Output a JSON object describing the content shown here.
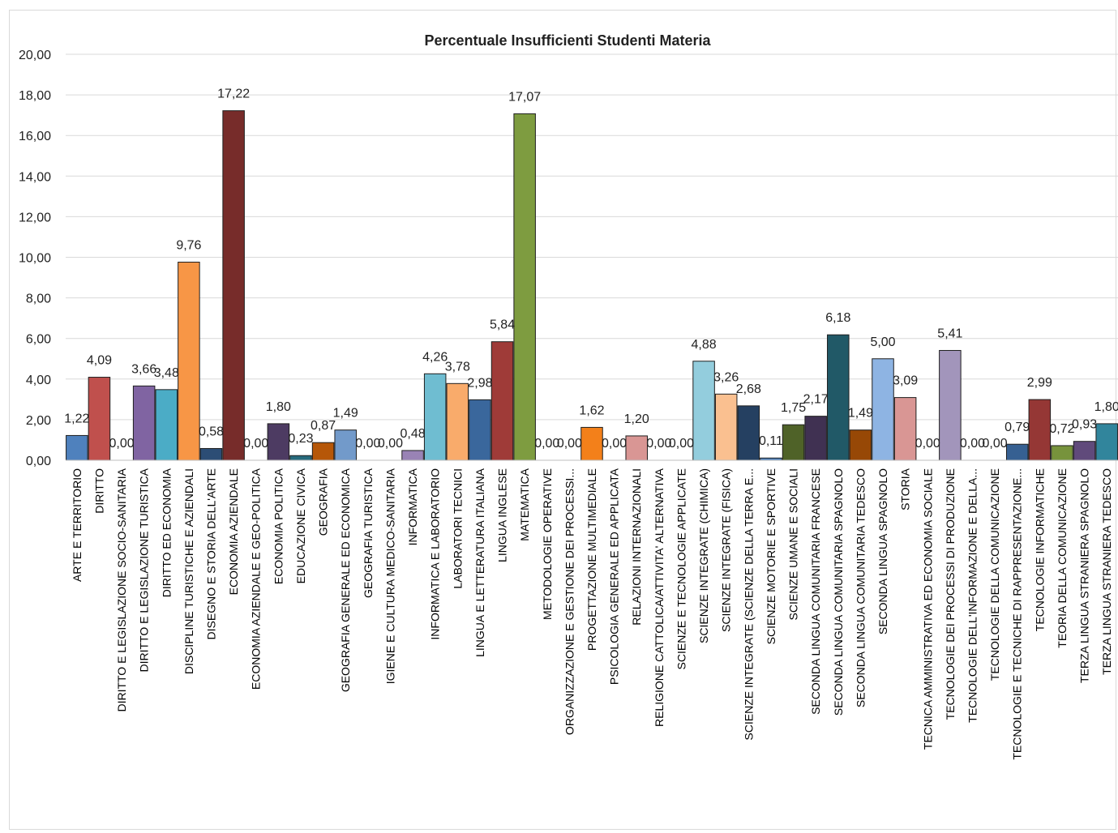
{
  "chart_data": {
    "type": "bar",
    "title": "Percentuale Insufficienti Studenti Materia",
    "xlabel": "",
    "ylabel": "",
    "ylim": [
      0,
      20
    ],
    "y_ticks": [
      "0,00",
      "2,00",
      "4,00",
      "6,00",
      "8,00",
      "10,00",
      "12,00",
      "14,00",
      "16,00",
      "18,00",
      "20,00"
    ],
    "grid": true,
    "legend": "none",
    "categories": [
      "ARTE E TERRITORIO",
      "DIRITTO",
      "DIRITTO E LEGISLAZIONE SOCIO-SANITARIA",
      "DIRITTO E LEGISLAZIONE TURISTICA",
      "DIRITTO ED ECONOMIA",
      "DISCIPLINE TURISTICHE E AZIENDALI",
      "DISEGNO E STORIA DELL'ARTE",
      "ECONOMIA AZIENDALE",
      "ECONOMIA AZIENDALE E GEO-POLITICA",
      "ECONOMIA POLITICA",
      "EDUCAZIONE CIVICA",
      "GEOGRAFIA",
      "GEOGRAFIA GENERALE ED ECONOMICA",
      "GEOGRAFIA TURISTICA",
      "IGIENE E CULTURA MEDICO-SANITARIA",
      "INFORMATICA",
      "INFORMATICA E LABORATORIO",
      "LABORATORI TECNICI",
      "LINGUA E LETTERATURA ITALIANA",
      "LINGUA INGLESE",
      "MATEMATICA",
      "METODOLOGIE OPERATIVE",
      "ORGANIZZAZIONE E GESTIONE DEI PROCESSI...",
      "PROGETTAZIONE MULTIMEDIALE",
      "PSICOLOGIA GENERALE ED APPLICATA",
      "RELAZIONI INTERNAZIONALI",
      "RELIGIONE CATTOLICA/ATTIVITA' ALTERNATIVA",
      "SCIENZE E TECNOLOGIE APPLICATE",
      "SCIENZE INTEGRATE (CHIMICA)",
      "SCIENZE INTEGRATE (FISICA)",
      "SCIENZE INTEGRATE (SCIENZE DELLA TERRA E...",
      "SCIENZE MOTORIE E SPORTIVE",
      "SCIENZE UMANE E SOCIALI",
      "SECONDA LINGUA COMUNITARIA FRANCESE",
      "SECONDA LINGUA COMUNITARIA SPAGNOLO",
      "SECONDA LINGUA COMUNITARIA TEDESCO",
      "SECONDA LINGUA SPAGNOLO",
      "STORIA",
      "TECNICA AMMINISTRATIVA ED ECONOMIA SOCIALE",
      "TECNOLOGIE DEI PROCESSI DI PRODUZIONE",
      "TECNOLOGIE DELL'INFORMAZIONE E DELLA...",
      "TECNOLOGIE DELLA COMUNICAZIONE",
      "TECNOLOGIE E TECNICHE DI RAPPRESENTAZIONE...",
      "TECNOLOGIE INFORMATICHE",
      "TEORIA DELLA COMUNICAZIONE",
      "TERZA LINGUA STRANIERA SPAGNOLO",
      "TERZA LINGUA STRANIERA TEDESCO"
    ],
    "values": [
      1.22,
      4.09,
      0.0,
      3.66,
      3.48,
      9.76,
      0.58,
      17.22,
      0.0,
      1.8,
      0.23,
      0.87,
      1.49,
      0.0,
      0.0,
      0.48,
      4.26,
      3.78,
      2.98,
      5.84,
      17.07,
      0.0,
      0.0,
      1.62,
      0.0,
      1.2,
      0.0,
      0.0,
      4.88,
      3.26,
      2.68,
      0.11,
      1.75,
      2.17,
      6.18,
      1.49,
      5.0,
      3.09,
      0.0,
      5.41,
      0.0,
      0.0,
      0.79,
      2.99,
      0.72,
      0.93,
      1.8
    ],
    "value_labels": [
      "1,22",
      "4,09",
      "0,00",
      "3,66",
      "3,48",
      "9,76",
      "0,58",
      "17,22",
      "0,00",
      "1,80",
      "0,23",
      "0,87",
      "1,49",
      "0,00",
      "0,00",
      "0,48",
      "4,26",
      "3,78",
      "2,98",
      "5,84",
      "17,07",
      "0,00",
      "0,00",
      "1,62",
      "0,00",
      "1,20",
      "0,00",
      "0,00",
      "4,88",
      "3,26",
      "2,68",
      "0,11",
      "1,75",
      "2,17",
      "6,18",
      "1,49",
      "5,00",
      "3,09",
      "0,00",
      "5,41",
      "0,00",
      "0,00",
      "0,79",
      "2,99",
      "0,72",
      "0,93",
      "1,80"
    ],
    "colors": [
      "#4f81bd",
      "#c0504d",
      "#9bbb59",
      "#8064a2",
      "#4bacc6",
      "#f79646",
      "#2c4d75",
      "#772c2a",
      "#5f7530",
      "#4d3b62",
      "#276a7c",
      "#b65708",
      "#729aca",
      "#c0504d",
      "#9bbb59",
      "#9983b5",
      "#6fbdd1",
      "#f9ab6b",
      "#3a679c",
      "#9f3b38",
      "#7e9c40",
      "#8064a2",
      "#4bacc6",
      "#f3801a",
      "#4f81bd",
      "#d99694",
      "#9bbb59",
      "#8064a2",
      "#93cddd",
      "#fac090",
      "#254061",
      "#4f81bd",
      "#4f6228",
      "#403152",
      "#215967",
      "#974806",
      "#8eb4e3",
      "#d99694",
      "#4f81bd",
      "#a295bb",
      "#4f81bd",
      "#4f81bd",
      "#366092",
      "#953735",
      "#77933c",
      "#604a7b",
      "#31859c"
    ]
  }
}
